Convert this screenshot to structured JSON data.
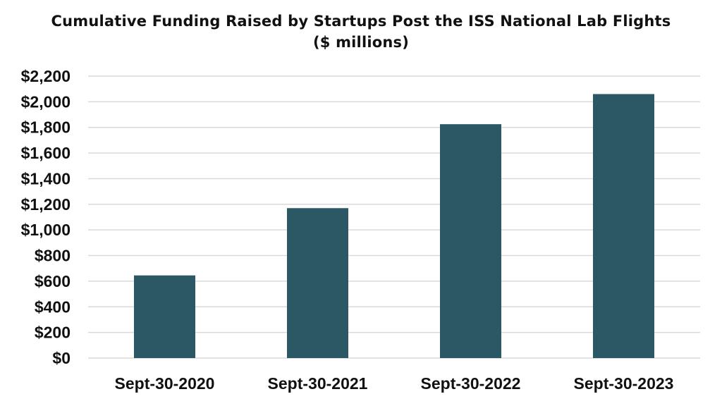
{
  "chart_data": {
    "type": "bar",
    "title": "Cumulative Funding Raised by Startups Post the ISS National Lab Flights",
    "subtitle": "($ millions)",
    "xlabel": "",
    "ylabel": "",
    "categories": [
      "Sept-30-2020",
      "Sept-30-2021",
      "Sept-30-2022",
      "Sept-30-2023"
    ],
    "values": [
      645,
      1170,
      1825,
      2060
    ],
    "ylim": [
      0,
      2200
    ],
    "y_ticks": [
      0,
      200,
      400,
      600,
      800,
      1000,
      1200,
      1400,
      1600,
      1800,
      2000,
      2200
    ],
    "y_tick_labels": [
      "$0",
      "$200",
      "$400",
      "$600",
      "$800",
      "$1,000",
      "$1,200",
      "$1,400",
      "$1,600",
      "$1,800",
      "$2,000",
      "$2,200"
    ],
    "grid": true,
    "legend": "none",
    "colors": {
      "bar": "#2c5866",
      "grid": "#d9d9d9",
      "text": "#111111"
    }
  }
}
